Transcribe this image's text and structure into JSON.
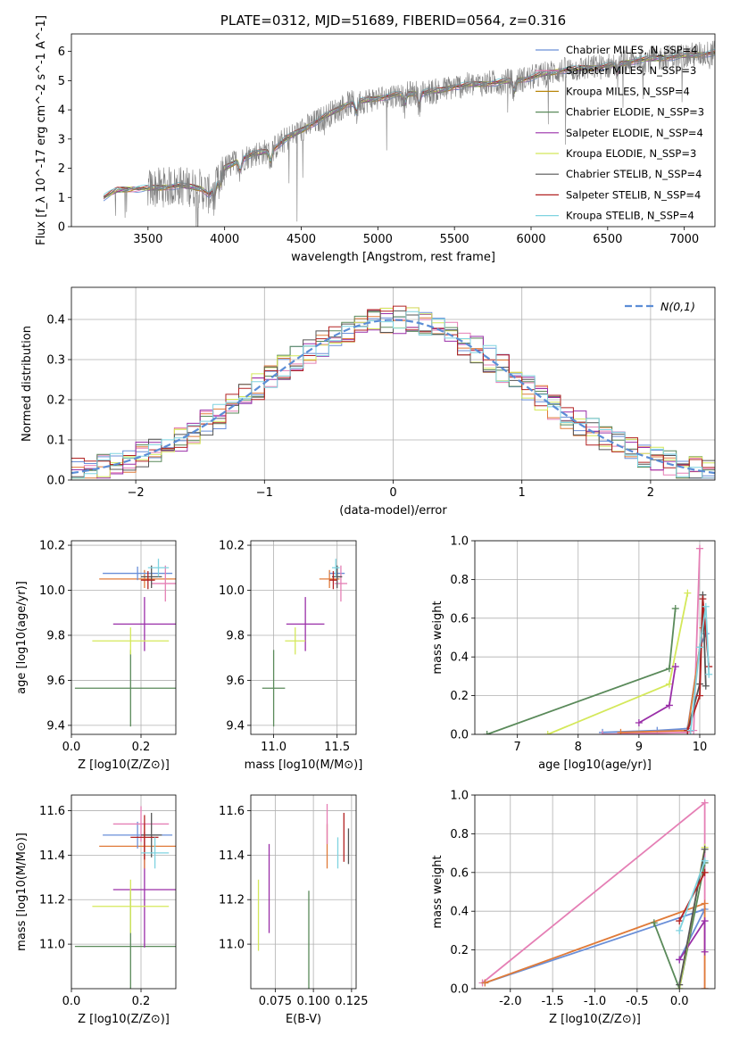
{
  "chart_data": [
    {
      "id": "spectrum",
      "type": "line",
      "title": "PLATE=0312, MJD=51689, FIBERID=0564, z=0.316",
      "xlabel": "wavelength [Angstrom, rest frame]",
      "ylabel": "Flux [f_λ 10^-17 erg cm^-2 s^-1 A^-1]",
      "xlim": [
        3000,
        7200
      ],
      "ylim": [
        0,
        6.6
      ],
      "xticks": [
        3500,
        4000,
        4500,
        5000,
        5500,
        6000,
        6500,
        7000
      ],
      "yticks": [
        0,
        1,
        2,
        3,
        4,
        5,
        6
      ],
      "grid": false,
      "legend_position": "top-right",
      "continuum": {
        "x": [
          3210,
          3300,
          3400,
          3500,
          3600,
          3700,
          3800,
          3850,
          3900,
          3950,
          4000,
          4100,
          4200,
          4300,
          4400,
          4500,
          4600,
          4700,
          4800,
          4900,
          5000,
          5100,
          5200,
          5300,
          5400,
          5500,
          5600,
          5700,
          5800,
          5900,
          6000,
          6100,
          6200,
          6300,
          6400,
          6500,
          6600,
          6700,
          6800,
          6900,
          7000,
          7100,
          7200
        ],
        "y": [
          1.0,
          1.25,
          1.3,
          1.3,
          1.35,
          1.4,
          1.35,
          1.3,
          1.1,
          1.5,
          2.0,
          2.3,
          2.5,
          2.6,
          3.0,
          3.3,
          3.6,
          3.9,
          4.2,
          4.3,
          4.4,
          4.5,
          4.55,
          4.6,
          4.65,
          4.8,
          4.85,
          4.9,
          4.95,
          5.0,
          5.1,
          5.25,
          5.35,
          5.4,
          5.45,
          5.5,
          5.6,
          5.7,
          5.75,
          5.8,
          5.85,
          5.9,
          5.95
        ]
      },
      "series": [
        {
          "name": "Chabrier MILES, N_SSP=4",
          "color": "#6a8fd8"
        },
        {
          "name": "Salpeter MILES, N_SSP=3",
          "color": "#e57fb5"
        },
        {
          "name": "Kroupa MILES, N_SSP=4",
          "color": "#b8860b"
        },
        {
          "name": "Chabrier ELODIE, N_SSP=3",
          "color": "#5a8a5a"
        },
        {
          "name": "Salpeter ELODIE, N_SSP=4",
          "color": "#9a2fa8"
        },
        {
          "name": "Kroupa ELODIE, N_SSP=3",
          "color": "#d4e85a"
        },
        {
          "name": "Chabrier STELIB, N_SSP=4",
          "color": "#555555"
        },
        {
          "name": "Salpeter STELIB, N_SSP=4",
          "color": "#b22222"
        },
        {
          "name": "Kroupa STELIB, N_SSP=4",
          "color": "#7fd3e0"
        }
      ],
      "data_color": "#808080"
    },
    {
      "id": "residuals",
      "type": "histogram",
      "xlabel": "(data-model)/error",
      "ylabel": "Normed distribution",
      "xlim": [
        -2.5,
        2.5
      ],
      "ylim": [
        0,
        0.48
      ],
      "xticks": [
        -2,
        -1,
        0,
        1,
        2
      ],
      "yticks": [
        0.0,
        0.1,
        0.2,
        0.3,
        0.4
      ],
      "grid": true,
      "legend_position": "top-right",
      "reference_curve": {
        "name": "N(0,1)",
        "color": "#5b8dd6",
        "style": "dashed"
      },
      "bin_width": 0.1,
      "bin_start": -2.5,
      "colors": [
        "#6a8fd8",
        "#e57fb5",
        "#e07b39",
        "#5a8a5a",
        "#9a2fa8",
        "#d4e85a",
        "#555555",
        "#b22222",
        "#7fd3e0"
      ]
    },
    {
      "id": "age_vs_Z",
      "type": "scatter",
      "xlabel": "Z [log10(Z/Z⊙)]",
      "ylabel": "age  [log10(age/yr)]",
      "xlim": [
        0.0,
        0.3
      ],
      "ylim": [
        9.36,
        10.22
      ],
      "xticks": [
        0.0,
        0.2
      ],
      "yticks": [
        9.4,
        9.6,
        9.8,
        10.0,
        10.2
      ],
      "grid": true,
      "points": [
        {
          "x": 0.17,
          "y": 9.565,
          "xerr": 0.16,
          "yerr": 0.17,
          "color": "#5a8a5a"
        },
        {
          "x": 0.21,
          "y": 9.85,
          "xerr": 0.09,
          "yerr": 0.12,
          "color": "#9a2fa8"
        },
        {
          "x": 0.17,
          "y": 9.775,
          "xerr": 0.11,
          "yerr": 0.06,
          "color": "#d4e85a"
        },
        {
          "x": 0.21,
          "y": 10.05,
          "xerr": 0.13,
          "yerr": 0.04,
          "color": "#e07b39"
        },
        {
          "x": 0.19,
          "y": 10.075,
          "xerr": 0.1,
          "yerr": 0.03,
          "color": "#6a8fd8"
        },
        {
          "x": 0.27,
          "y": 10.03,
          "xerr": 0.04,
          "yerr": 0.08,
          "color": "#e57fb5"
        },
        {
          "x": 0.23,
          "y": 10.06,
          "xerr": 0.03,
          "yerr": 0.05,
          "color": "#555555"
        },
        {
          "x": 0.22,
          "y": 10.045,
          "xerr": 0.02,
          "yerr": 0.04,
          "color": "#b22222"
        },
        {
          "x": 0.25,
          "y": 10.1,
          "xerr": 0.03,
          "yerr": 0.04,
          "color": "#7fd3e0"
        }
      ]
    },
    {
      "id": "age_vs_mass",
      "type": "scatter",
      "xlabel": "mass [log10(M/M⊙)]",
      "ylabel": "",
      "xlim": [
        10.82,
        11.65
      ],
      "ylim": [
        9.36,
        10.22
      ],
      "xticks": [
        11.0,
        11.5
      ],
      "yticks": [
        9.4,
        9.6,
        9.8,
        10.0,
        10.2
      ],
      "grid": true,
      "points": [
        {
          "x": 11.0,
          "y": 9.565,
          "xerr": 0.09,
          "yerr": 0.17,
          "color": "#5a8a5a"
        },
        {
          "x": 11.25,
          "y": 9.85,
          "xerr": 0.15,
          "yerr": 0.12,
          "color": "#9a2fa8"
        },
        {
          "x": 11.17,
          "y": 9.775,
          "xerr": 0.08,
          "yerr": 0.06,
          "color": "#d4e85a"
        },
        {
          "x": 11.44,
          "y": 10.05,
          "xerr": 0.08,
          "yerr": 0.04,
          "color": "#e07b39"
        },
        {
          "x": 11.5,
          "y": 10.075,
          "xerr": 0.06,
          "yerr": 0.03,
          "color": "#6a8fd8"
        },
        {
          "x": 11.53,
          "y": 10.03,
          "xerr": 0.05,
          "yerr": 0.08,
          "color": "#e57fb5"
        },
        {
          "x": 11.5,
          "y": 10.06,
          "xerr": 0.04,
          "yerr": 0.05,
          "color": "#555555"
        },
        {
          "x": 11.47,
          "y": 10.045,
          "xerr": 0.03,
          "yerr": 0.04,
          "color": "#b22222"
        },
        {
          "x": 11.49,
          "y": 10.1,
          "xerr": 0.03,
          "yerr": 0.04,
          "color": "#7fd3e0"
        }
      ]
    },
    {
      "id": "weight_vs_age",
      "type": "line",
      "xlabel": "age  [log10(age/yr)]",
      "ylabel": "mass weight",
      "xlim": [
        6.3,
        10.25
      ],
      "ylim": [
        0,
        1.0
      ],
      "xticks": [
        7,
        8,
        9,
        10
      ],
      "yticks": [
        0.0,
        0.2,
        0.4,
        0.6,
        0.8,
        1.0
      ],
      "grid": true,
      "series": [
        {
          "color": "#5a8a5a",
          "x": [
            6.5,
            9.5,
            9.6
          ],
          "y": [
            0.0,
            0.34,
            0.65
          ]
        },
        {
          "color": "#d4e85a",
          "x": [
            7.5,
            9.5,
            9.8
          ],
          "y": [
            0.0,
            0.26,
            0.73
          ]
        },
        {
          "color": "#9a2fa8",
          "x": [
            9.0,
            9.5,
            9.6
          ],
          "y": [
            0.06,
            0.15,
            0.35
          ]
        },
        {
          "color": "#6a8fd8",
          "x": [
            8.4,
            9.3,
            9.8,
            10.0,
            10.1
          ],
          "y": [
            0.01,
            0.02,
            0.03,
            0.45,
            0.52
          ]
        },
        {
          "color": "#e57fb5",
          "x": [
            8.4,
            9.8,
            9.9,
            10.0
          ],
          "y": [
            0.0,
            0.01,
            0.02,
            0.96
          ]
        },
        {
          "color": "#e07b39",
          "x": [
            8.7,
            9.8,
            10.0,
            10.05
          ],
          "y": [
            0.01,
            0.02,
            0.45,
            0.55
          ]
        },
        {
          "color": "#555555",
          "x": [
            9.8,
            10.0,
            10.05,
            10.1
          ],
          "y": [
            0.02,
            0.26,
            0.72,
            0.25
          ]
        },
        {
          "color": "#b22222",
          "x": [
            9.8,
            10.0,
            10.05,
            10.15
          ],
          "y": [
            0.02,
            0.2,
            0.7,
            0.35
          ]
        },
        {
          "color": "#7fd3e0",
          "x": [
            9.85,
            10.0,
            10.1,
            10.15
          ],
          "y": [
            0.02,
            0.45,
            0.66,
            0.31
          ]
        }
      ]
    },
    {
      "id": "mass_vs_Z",
      "type": "scatter",
      "xlabel": "Z [log10(Z/Z⊙)]",
      "ylabel": "mass [log10(M/M⊙)]",
      "xlim": [
        0.0,
        0.3
      ],
      "ylim": [
        10.8,
        11.67
      ],
      "xticks": [
        0.0,
        0.2
      ],
      "yticks": [
        11.0,
        11.2,
        11.4,
        11.6
      ],
      "grid": true,
      "points": [
        {
          "x": 0.17,
          "y": 10.99,
          "xerr": 0.16,
          "yerr": 0.25,
          "color": "#5a8a5a"
        },
        {
          "x": 0.21,
          "y": 11.245,
          "xerr": 0.09,
          "yerr": 0.26,
          "color": "#9a2fa8"
        },
        {
          "x": 0.17,
          "y": 11.17,
          "xerr": 0.11,
          "yerr": 0.12,
          "color": "#d4e85a"
        },
        {
          "x": 0.21,
          "y": 11.44,
          "xerr": 0.13,
          "yerr": 0.1,
          "color": "#e07b39"
        },
        {
          "x": 0.19,
          "y": 11.49,
          "xerr": 0.1,
          "yerr": 0.06,
          "color": "#6a8fd8"
        },
        {
          "x": 0.2,
          "y": 11.54,
          "xerr": 0.08,
          "yerr": 0.08,
          "color": "#e57fb5"
        },
        {
          "x": 0.23,
          "y": 11.49,
          "xerr": 0.03,
          "yerr": 0.1,
          "color": "#555555"
        },
        {
          "x": 0.21,
          "y": 11.48,
          "xerr": 0.04,
          "yerr": 0.1,
          "color": "#b22222"
        },
        {
          "x": 0.24,
          "y": 11.41,
          "xerr": 0.04,
          "yerr": 0.07,
          "color": "#7fd3e0"
        }
      ]
    },
    {
      "id": "mass_vs_ebv",
      "type": "scatter",
      "xlabel": "E(B-V)",
      "ylabel": "",
      "xlim": [
        0.059,
        0.128
      ],
      "ylim": [
        10.8,
        11.67
      ],
      "xticks": [
        0.075,
        0.1,
        0.125
      ],
      "xticklabels": [
        "0.075",
        "0.100",
        "0.125"
      ],
      "yticks": [
        11.0,
        11.2,
        11.4,
        11.6
      ],
      "grid": true,
      "points": [
        {
          "x": 0.064,
          "y": 11.13,
          "yerr": 0.16,
          "color": "#d4e85a"
        },
        {
          "x": 0.071,
          "y": 11.25,
          "yerr": 0.2,
          "color": "#9a2fa8"
        },
        {
          "x": 0.097,
          "y": 10.99,
          "yerr": 0.25,
          "color": "#5a8a5a"
        },
        {
          "x": 0.109,
          "y": 11.44,
          "yerr": 0.1,
          "color": "#e07b39"
        },
        {
          "x": 0.109,
          "y": 11.54,
          "yerr": 0.09,
          "color": "#e57fb5"
        },
        {
          "x": 0.116,
          "y": 11.41,
          "yerr": 0.07,
          "color": "#7fd3e0"
        },
        {
          "x": 0.12,
          "y": 11.48,
          "yerr": 0.11,
          "color": "#b22222"
        },
        {
          "x": 0.123,
          "y": 11.44,
          "yerr": 0.08,
          "color": "#555555"
        }
      ]
    },
    {
      "id": "weight_vs_Z",
      "type": "line",
      "xlabel": "Z [log10(Z/Z⊙)]",
      "ylabel": "mass weight",
      "xlim": [
        -2.42,
        0.42
      ],
      "ylim": [
        0,
        1.0
      ],
      "xticks": [
        -2.0,
        -1.5,
        -1.0,
        -0.5,
        0.0
      ],
      "yticks": [
        0.0,
        0.2,
        0.4,
        0.6,
        0.8,
        1.0
      ],
      "grid": true,
      "series": [
        {
          "color": "#e57fb5",
          "x": [
            -2.33,
            0.3,
            0.3
          ],
          "y": [
            0.03,
            0.96,
            0.0
          ]
        },
        {
          "color": "#6a8fd8",
          "x": [
            -2.3,
            0.3,
            0.0
          ],
          "y": [
            0.03,
            0.41,
            0.15
          ]
        },
        {
          "color": "#e07b39",
          "x": [
            -2.3,
            0.3,
            0.3
          ],
          "y": [
            0.03,
            0.44,
            0.0
          ]
        },
        {
          "color": "#5a8a5a",
          "x": [
            -0.3,
            0.0,
            0.3
          ],
          "y": [
            0.34,
            0.0,
            0.65
          ]
        },
        {
          "color": "#9a2fa8",
          "x": [
            0.0,
            0.3,
            0.3
          ],
          "y": [
            0.15,
            0.35,
            0.19
          ]
        },
        {
          "color": "#d4e85a",
          "x": [
            0.0,
            0.3
          ],
          "y": [
            0.0,
            0.73
          ]
        },
        {
          "color": "#555555",
          "x": [
            0.0,
            0.3
          ],
          "y": [
            0.02,
            0.72
          ]
        },
        {
          "color": "#b22222",
          "x": [
            0.0,
            0.3
          ],
          "y": [
            0.35,
            0.6
          ]
        },
        {
          "color": "#7fd3e0",
          "x": [
            0.0,
            0.3
          ],
          "y": [
            0.3,
            0.66
          ]
        }
      ]
    }
  ]
}
